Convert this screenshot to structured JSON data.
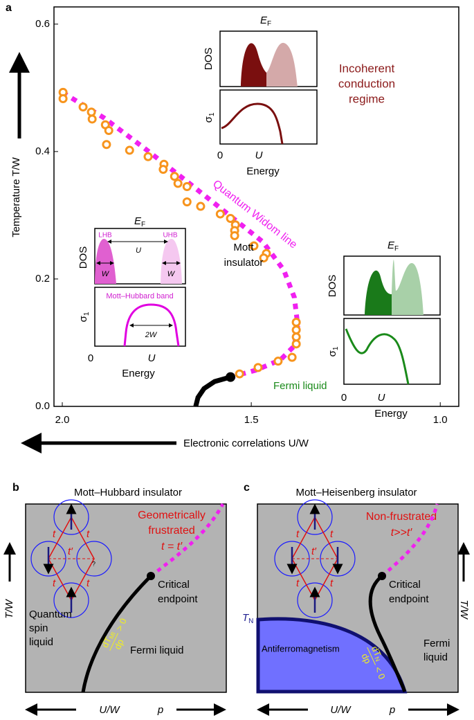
{
  "chart_data": {
    "type": "scatter",
    "panel": "a",
    "x_label": "Electronic correlations U/W",
    "y_label": "Temperature T/W",
    "xlim": [
      2.022,
      0.951
    ],
    "ylim": [
      0,
      0.627
    ],
    "xticks": [
      {
        "value": 2.0,
        "label": "2.0"
      },
      {
        "value": 1.5,
        "label": "1.5"
      },
      {
        "value": 1.0,
        "label": "1.0"
      }
    ],
    "yticks": [
      {
        "value": 0,
        "label": "0.0"
      },
      0.2,
      0.4,
      0.6
    ],
    "points": {
      "color": "#f7941d",
      "x": [
        1.998,
        1.998,
        1.945,
        1.923,
        1.921,
        1.886,
        1.877,
        1.883,
        1.822,
        1.773,
        1.731,
        1.733,
        1.703,
        1.694,
        1.67,
        1.67,
        1.634,
        1.582,
        1.555,
        1.542,
        1.544,
        1.544,
        1.493,
        1.46,
        1.467,
        1.381,
        1.381,
        1.381,
        1.381,
        1.392,
        1.429,
        1.482,
        1.531
      ],
      "y": [
        0.493,
        0.483,
        0.47,
        0.462,
        0.451,
        0.442,
        0.433,
        0.411,
        0.402,
        0.392,
        0.38,
        0.372,
        0.361,
        0.35,
        0.345,
        0.321,
        0.314,
        0.302,
        0.295,
        0.285,
        0.276,
        0.268,
        0.252,
        0.24,
        0.233,
        0.132,
        0.12,
        0.109,
        0.098,
        0.077,
        0.071,
        0.061,
        0.051
      ]
    },
    "widom_line": {
      "name": "Quantum Widom line",
      "color": "#f020f0",
      "x": [
        2.0,
        1.89,
        1.78,
        1.67,
        1.56,
        1.469,
        1.414,
        1.386,
        1.377,
        1.386,
        1.423,
        1.487,
        1.555
      ],
      "y": [
        0.493,
        0.453,
        0.404,
        0.353,
        0.301,
        0.258,
        0.214,
        0.171,
        0.127,
        0.095,
        0.073,
        0.057,
        0.046
      ]
    },
    "boundary": {
      "color": "#000000",
      "x": [
        1.555,
        1.597,
        1.625,
        1.641,
        1.647
      ],
      "y": [
        0.046,
        0.039,
        0.028,
        0.014,
        0
      ]
    },
    "critical_endpoint": {
      "x": 1.555,
      "y": 0.046
    },
    "incoherent": [
      "Incoherent",
      "conduction",
      "regime"
    ],
    "mott": [
      "Mott",
      "insulator"
    ],
    "fermi": "Fermi liquid"
  },
  "insets": {
    "ef": {
      "main": "E",
      "sub": "F"
    },
    "dos": "DOS",
    "sigma": {
      "main": "σ",
      "sub": "1"
    },
    "zero": "0",
    "u": "U",
    "energy": "Energy",
    "lhb": "LHB",
    "uhb": "UHB",
    "w": "W",
    "band": "Mott–Hubbard band",
    "two_w": "2W"
  },
  "panel_b": {
    "letter": "b",
    "title": "Mott–Hubbard insulator",
    "regime": [
      "Geometrically",
      "frustrated"
    ],
    "relation": "t = t′",
    "endpoint": [
      "Critical",
      "endpoint"
    ],
    "spin_liquid": [
      "Quantum",
      "spin",
      "liquid"
    ],
    "fermi": "Fermi liquid",
    "slope": {
      "num": "dT",
      "sub": "MI",
      "den": "dp",
      "rel": "> 0"
    },
    "t": "t",
    "tp": "t′",
    "q": "?"
  },
  "panel_c": {
    "letter": "c",
    "title": "Mott–Heisenberg insulator",
    "regime": "Non-frustrated",
    "relation": "t>>t′",
    "endpoint": [
      "Critical",
      "endpoint"
    ],
    "tn": {
      "main": "T",
      "sub": "N"
    },
    "af": "Antiferromagnetism",
    "fermi": [
      "Fermi",
      "liquid"
    ],
    "slope": {
      "num": "dT",
      "sub": "N",
      "den": "dp",
      "rel": "< 0"
    }
  },
  "axes": {
    "tw": "T/W",
    "uw": "U/W",
    "p": "p"
  }
}
